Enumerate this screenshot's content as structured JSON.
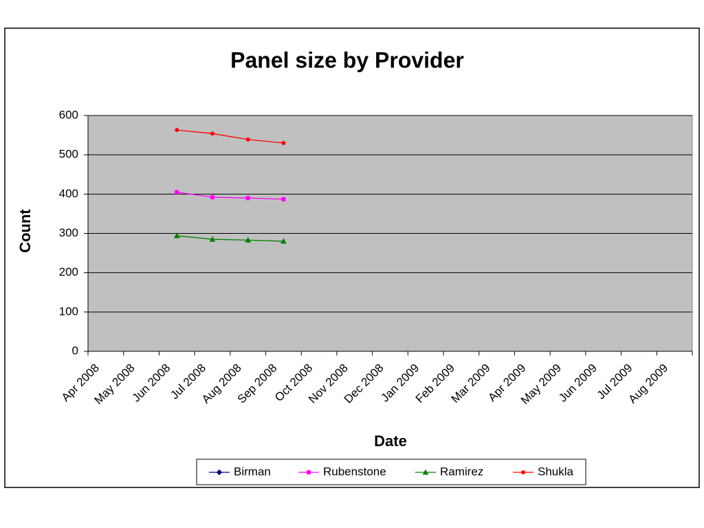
{
  "chart_data": {
    "type": "line",
    "title": "Panel size by Provider",
    "x_label": "Date",
    "y_label": "Count",
    "categories": [
      "Apr 2008",
      "May 2008",
      "Jun 2008",
      "Jul 2008",
      "Aug 2008",
      "Sep 2008",
      "Oct 2008",
      "Nov 2008",
      "Dec 2008",
      "Jan 2009",
      "Feb 2009",
      "Mar 2009",
      "Apr 2009",
      "May 2009",
      "Jun 2009",
      "Jul 2009",
      "Aug 2009"
    ],
    "series": [
      {
        "name": "Birman",
        "color": "#000080",
        "marker": "diamond",
        "values": [
          null,
          null,
          null,
          null,
          null,
          null,
          null,
          null,
          null,
          null,
          null,
          null,
          null,
          null,
          null,
          null,
          null
        ]
      },
      {
        "name": "Rubenstone",
        "color": "#ff00ff",
        "marker": "square",
        "values": [
          null,
          null,
          405,
          392,
          390,
          387,
          null,
          null,
          null,
          null,
          null,
          null,
          null,
          null,
          null,
          null,
          null
        ]
      },
      {
        "name": "Ramirez",
        "color": "#008000",
        "marker": "triangle",
        "values": [
          null,
          null,
          294,
          285,
          283,
          280,
          null,
          null,
          null,
          null,
          null,
          null,
          null,
          null,
          null,
          null,
          null
        ]
      },
      {
        "name": "Shukla",
        "color": "#ff0000",
        "marker": "circle",
        "values": [
          null,
          null,
          563,
          554,
          539,
          530,
          null,
          null,
          null,
          null,
          null,
          null,
          null,
          null,
          null,
          null,
          null
        ]
      }
    ],
    "ylim": [
      0,
      600
    ],
    "yticks": [
      0,
      100,
      200,
      300,
      400,
      500,
      600
    ],
    "grid": true,
    "plot_background": "#c0c0c0",
    "legend": "bottom"
  }
}
